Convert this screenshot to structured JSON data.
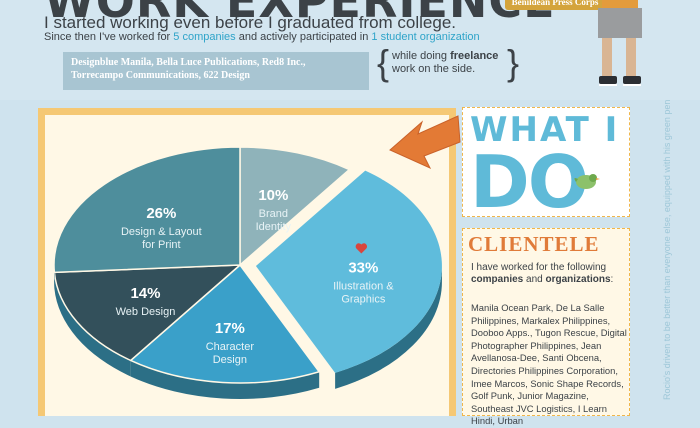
{
  "header": {
    "title": "WORK EXPERIENCE",
    "intro": "I started working even before I graduated from college.",
    "sub_pre": "Since then I've worked for ",
    "sub_companies": "5 companies",
    "sub_mid": " and actively participated in ",
    "sub_org": "1 student organization",
    "companies_line1": "Designblue Manila, Bella Luce Publications, Red8 Inc.,",
    "companies_line2": "Torrecampo Communications, 622 Design",
    "freelance_pre": "while doing ",
    "freelance_word": "freelance",
    "freelance_post": "work on the side.",
    "badge": "Benildean Press Corps"
  },
  "chart_data": {
    "type": "pie",
    "title": "",
    "slices": [
      {
        "label": "Brand Identity",
        "value": 10,
        "pct_label": "10%",
        "lines": [
          "Brand",
          "Identity"
        ],
        "color": "#8fb3ba"
      },
      {
        "label": "Illustration & Graphics",
        "value": 33,
        "pct_label": "33%",
        "lines": [
          "Illustration &",
          "Graphics"
        ],
        "color": "#5fbcdc",
        "exploded": true
      },
      {
        "label": "Character Design",
        "value": 17,
        "pct_label": "17%",
        "lines": [
          "Character",
          "Design"
        ],
        "color": "#3aa0c9"
      },
      {
        "label": "Web Design",
        "value": 14,
        "pct_label": "14%",
        "lines": [
          "Web Design"
        ],
        "color": "#33505b"
      },
      {
        "label": "Design & Layout for Print",
        "value": 26,
        "pct_label": "26%",
        "lines": [
          "Design & Layout",
          "for Print"
        ],
        "color": "#4e8e9c"
      }
    ],
    "colors": {
      "heart": "#d9453d",
      "side_dark": "#2c6f86"
    }
  },
  "what_i_do": {
    "line1": "WHAT I",
    "line2": "DO"
  },
  "side_note": "Rocio's driven to be better than everyone else, equipped with his green pen, his laptop in the Third World.",
  "clientele": {
    "heading": "CLIENTELE",
    "intro_pre": "I have worked for the following ",
    "intro_b1": "companies",
    "intro_and": " and ",
    "intro_b2": "organizations",
    "intro_post": ":",
    "list": "Manila Ocean Park, De La Salle Philippines, Markalex Philippines, Dooboo Apps., Tugon Rescue, Digital Photographer Philippines, Jean Avellanosa-Dee, Santi Obcena, Directories Philippines Corporation, Imee Marcos, Sonic Shape Records, Golf Punk, Junior Magazine, Southeast JVC Logistics, I Learn Hindi, Urban"
  }
}
